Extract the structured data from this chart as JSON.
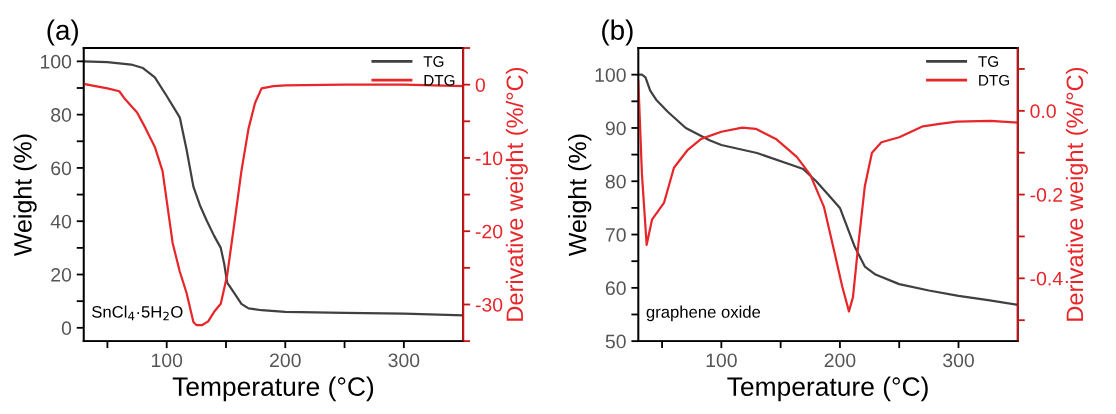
{
  "chart_data": [
    {
      "type": "line",
      "title": "(a)",
      "xlabel": "Temperature (°C)",
      "ylabel": "Weight (%)",
      "y2label": "Derivative weight (%/°C)",
      "annotations": [
        "SnCl$_{4}$·5H$_{2}$O"
      ],
      "xlim": [
        30,
        350
      ],
      "xticks": [
        {
          "value": 50,
          "label": null
        },
        100,
        {
          "value": 150,
          "label": null
        },
        200,
        {
          "value": 250,
          "label": null
        },
        300
      ],
      "ylim": [
        -5,
        105
      ],
      "yticks": [
        0,
        {
          "value": 10,
          "label": null
        },
        20,
        {
          "value": 30,
          "label": null
        },
        40,
        {
          "value": 50,
          "label": null
        },
        60,
        {
          "value": 70,
          "label": null
        },
        80,
        {
          "value": 90,
          "label": null
        },
        100
      ],
      "y2lim": [
        -35,
        5
      ],
      "y2ticks": [
        {
          "value": -35,
          "label": null
        },
        -30,
        {
          "value": -25,
          "label": null
        },
        -20,
        {
          "value": -15,
          "label": null
        },
        -10,
        {
          "value": -5,
          "label": null
        },
        0,
        {
          "value": 5,
          "label": null
        }
      ],
      "legend": "top right",
      "grid": false,
      "series": [
        {
          "name": "TG",
          "color": "#404040",
          "x": [
            30,
            50,
            70,
            80,
            90,
            100,
            111,
            116.7,
            122.5,
            128,
            134,
            140,
            145.6,
            148.5,
            151,
            157,
            163,
            169,
            180,
            200,
            250,
            300,
            350
          ],
          "values": [
            100,
            99.7,
            98.8,
            97.5,
            94,
            87,
            79,
            67,
            53,
            46,
            40,
            34.5,
            30,
            24,
            17,
            13,
            9,
            7.3,
            6.6,
            6,
            5.6,
            5.3,
            4.7
          ]
        },
        {
          "name": "DTG",
          "color": "#e8262a",
          "axis": "y2",
          "x": [
            30,
            50,
            60,
            65,
            75,
            82,
            90,
            96.5,
            105,
            111,
            116.7,
            122.5,
            125,
            130,
            135,
            140,
            145.6,
            151,
            157,
            163,
            169,
            174.5,
            180,
            190,
            200,
            250,
            300,
            350
          ],
          "values": [
            0.1,
            -0.5,
            -0.9,
            -2,
            -3.8,
            -5.9,
            -8.5,
            -11.8,
            -21.6,
            -25.5,
            -28.4,
            -32.4,
            -32.8,
            -32.8,
            -32.3,
            -31,
            -29.9,
            -26,
            -19,
            -11.8,
            -6,
            -2.5,
            -0.5,
            -0.2,
            -0.1,
            0,
            0,
            -0.2
          ]
        }
      ]
    },
    {
      "type": "line",
      "title": "(b)",
      "xlabel": "Temperature (°C)",
      "ylabel": "Weight (%)",
      "y2label": "Derivative weight (%/°C)",
      "annotations": [
        "graphene oxide"
      ],
      "xlim": [
        30,
        350
      ],
      "xticks": [
        {
          "value": 50,
          "label": null
        },
        100,
        {
          "value": 150,
          "label": null
        },
        200,
        {
          "value": 250,
          "label": null
        },
        300
      ],
      "ylim": [
        50,
        105
      ],
      "yticks": [
        50,
        {
          "value": 55,
          "label": null
        },
        60,
        {
          "value": 65,
          "label": null
        },
        70,
        {
          "value": 75,
          "label": null
        },
        80,
        {
          "value": 85,
          "label": null
        },
        90,
        {
          "value": 95,
          "label": null
        },
        100
      ],
      "y2lim": [
        -0.55,
        0.15
      ],
      "y2ticks": [
        {
          "value": -0.5,
          "label": null
        },
        -0.4,
        {
          "value": -0.3,
          "label": null
        },
        -0.2,
        {
          "value": -0.1,
          "label": null
        },
        {
          "value": 0,
          "label": "0.0"
        },
        {
          "value": 0.1,
          "label": null
        }
      ],
      "legend": "top right",
      "grid": false,
      "series": [
        {
          "name": "TG",
          "color": "#404040",
          "x": [
            30,
            33,
            36,
            40,
            45,
            55,
            70,
            90,
            100,
            130,
            160,
            169,
            180,
            190,
            200,
            212.5,
            221,
            230,
            250,
            275,
            300,
            325,
            350
          ],
          "values": [
            100,
            100,
            99.5,
            97,
            95.3,
            93,
            90,
            87.7,
            86.8,
            85.3,
            83,
            82.3,
            80,
            77.5,
            75,
            67.7,
            64,
            62.5,
            60.7,
            59.5,
            58.5,
            57.7,
            56.8
          ]
        },
        {
          "name": "DTG",
          "color": "#e8262a",
          "axis": "y2",
          "x": [
            30,
            33,
            37,
            41.5,
            51.6,
            60,
            71.7,
            83,
            100,
            117.6,
            129,
            146,
            163.6,
            175,
            186.6,
            195,
            202,
            207.6,
            211,
            215,
            221,
            227,
            235,
            250,
            270,
            284,
            298.7,
            327,
            350
          ],
          "values": [
            0.07,
            -0.15,
            -0.32,
            -0.26,
            -0.22,
            -0.136,
            -0.093,
            -0.067,
            -0.05,
            -0.04,
            -0.043,
            -0.067,
            -0.11,
            -0.153,
            -0.23,
            -0.333,
            -0.42,
            -0.479,
            -0.445,
            -0.333,
            -0.18,
            -0.1,
            -0.075,
            -0.063,
            -0.037,
            -0.031,
            -0.026,
            -0.024,
            -0.028
          ]
        }
      ]
    }
  ]
}
